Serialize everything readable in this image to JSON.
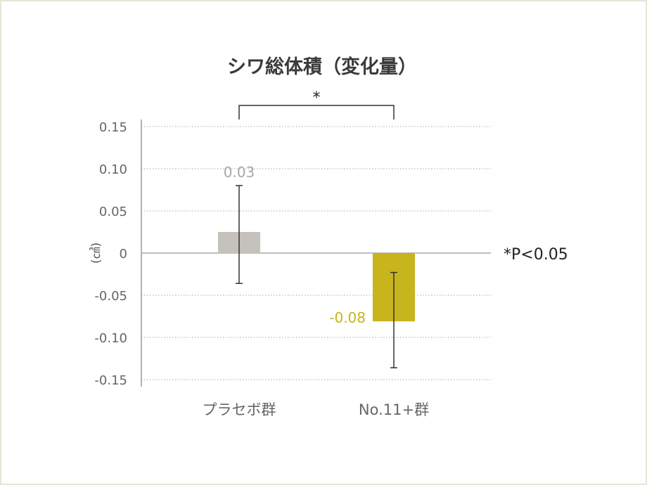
{
  "chart_data": {
    "type": "bar",
    "title": "シワ総体積（変化量）",
    "ylabel": "(㎤)",
    "ylim": [
      -0.15,
      0.15
    ],
    "yticks": [
      0.15,
      0.1,
      0.05,
      0,
      -0.05,
      -0.1,
      -0.15
    ],
    "ytick_labels": [
      "0.15",
      "0.10",
      "0.05",
      "0",
      "-0.05",
      "-0.10",
      "-0.15"
    ],
    "grid": true,
    "categories": [
      "プラセボ群",
      "No.11+群"
    ],
    "values": [
      0.025,
      -0.081
    ],
    "data_labels": [
      "0.03",
      "-0.08"
    ],
    "error_bars": [
      {
        "upper": 0.08,
        "lower": -0.036
      },
      {
        "upper": -0.023,
        "lower": -0.136
      }
    ],
    "colors": [
      "#c4c2bb",
      "#c8b41c"
    ],
    "label_colors": [
      "#a8a8a8",
      "#c8b41c"
    ],
    "significance": {
      "marker": "*",
      "between": [
        0,
        1
      ]
    },
    "annotation": "*P<0.05"
  }
}
